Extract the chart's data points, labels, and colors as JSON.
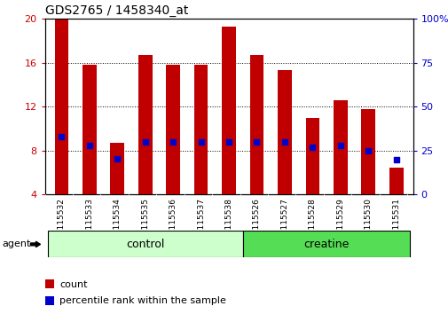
{
  "title": "GDS2765 / 1458340_at",
  "samples": [
    "GSM115532",
    "GSM115533",
    "GSM115534",
    "GSM115535",
    "GSM115536",
    "GSM115537",
    "GSM115538",
    "GSM115526",
    "GSM115527",
    "GSM115528",
    "GSM115529",
    "GSM115530",
    "GSM115531"
  ],
  "counts": [
    20.0,
    15.8,
    8.7,
    16.7,
    15.8,
    15.8,
    19.3,
    16.7,
    15.3,
    11.0,
    12.6,
    11.8,
    6.5
  ],
  "percentiles": [
    9.3,
    8.5,
    7.3,
    8.8,
    8.8,
    8.8,
    8.8,
    8.8,
    8.8,
    8.3,
    8.5,
    8.0,
    7.2
  ],
  "ylim_left": [
    4,
    20
  ],
  "ylim_right": [
    0,
    100
  ],
  "yticks_left": [
    4,
    8,
    12,
    16,
    20
  ],
  "yticks_right": [
    0,
    25,
    50,
    75,
    100
  ],
  "bar_color": "#C00000",
  "dot_color": "#0000CC",
  "bar_bottom": 4.0,
  "control_color": "#CCFFCC",
  "creatine_color": "#55DD55",
  "group_label_control": "control",
  "group_label_creatine": "creatine",
  "agent_label": "agent",
  "legend_count_label": "count",
  "legend_pct_label": "percentile rank within the sample",
  "ylabel_left_color": "#CC0000",
  "ylabel_right_color": "#0000CC",
  "right_ytick_labels": [
    "0",
    "25",
    "50",
    "75",
    "100%"
  ],
  "background_color": "#FFFFFF",
  "tick_area_color": "#CCCCCC",
  "bar_width": 0.5
}
